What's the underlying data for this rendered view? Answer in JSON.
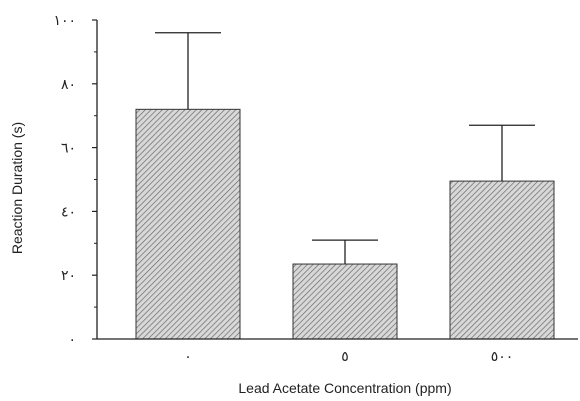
{
  "chart_data": {
    "type": "bar",
    "title": "",
    "xlabel": "Lead Acetate Concentration (ppm)",
    "ylabel": "Reaction Duration (s)",
    "categories": [
      "٠",
      "٥",
      "٥٠٠"
    ],
    "values": [
      72,
      23.5,
      49.5
    ],
    "error_upper": [
      96,
      31,
      67
    ],
    "ylim": [
      0,
      100
    ],
    "yticks": [
      0,
      20,
      40,
      60,
      80,
      100
    ],
    "ytick_labels": [
      "٠",
      "٢٠",
      "٤٠",
      "٦٠",
      "٨٠",
      "١٠٠"
    ],
    "minor_yticks": [
      10,
      30,
      50,
      70,
      90
    ],
    "grid": false,
    "bar_fill": "hatched-gray",
    "colors": {
      "axis": "#222222",
      "bar_stroke": "#333333",
      "hatch_bg": "#d8d8d8",
      "hatch_line": "#6a6a6a"
    }
  }
}
